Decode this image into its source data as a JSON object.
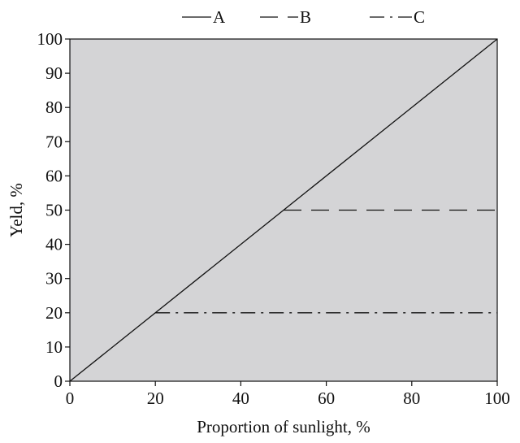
{
  "chart_data": {
    "type": "line",
    "title": "",
    "xlabel": "Proportion of sunlight, %",
    "ylabel": "Yeld, %",
    "xlim": [
      0,
      100
    ],
    "ylim": [
      0,
      100
    ],
    "xticks": [
      0,
      20,
      40,
      60,
      80,
      100
    ],
    "yticks": [
      0,
      10,
      20,
      30,
      40,
      50,
      60,
      70,
      80,
      90,
      100
    ],
    "grid": false,
    "legend_position": "top",
    "plot_background": "#d4d4d6",
    "series": [
      {
        "name": "A",
        "style": "solid",
        "color": "#111111",
        "x": [
          0,
          100
        ],
        "y": [
          0,
          100
        ]
      },
      {
        "name": "B",
        "style": "dashed",
        "color": "#111111",
        "x": [
          50,
          100
        ],
        "y": [
          50,
          50
        ]
      },
      {
        "name": "C",
        "style": "dash-dot",
        "color": "#111111",
        "x": [
          20,
          100
        ],
        "y": [
          20,
          20
        ]
      }
    ]
  }
}
